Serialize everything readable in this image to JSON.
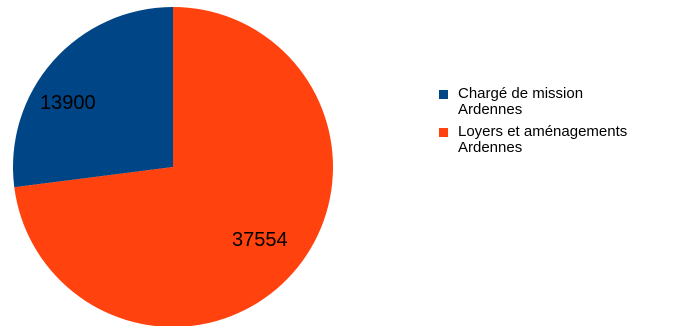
{
  "chart_data": {
    "type": "pie",
    "title": "",
    "legend_position": "right",
    "slices": [
      {
        "label": "Chargé de mission",
        "label_line2": "Ardennes",
        "value": 13900,
        "value_text": "13900",
        "color": "#004586"
      },
      {
        "label": "Loyers et aménagements",
        "label_line2": "Ardennes",
        "value": 37554,
        "value_text": "37554",
        "color": "#ff420e"
      }
    ]
  }
}
